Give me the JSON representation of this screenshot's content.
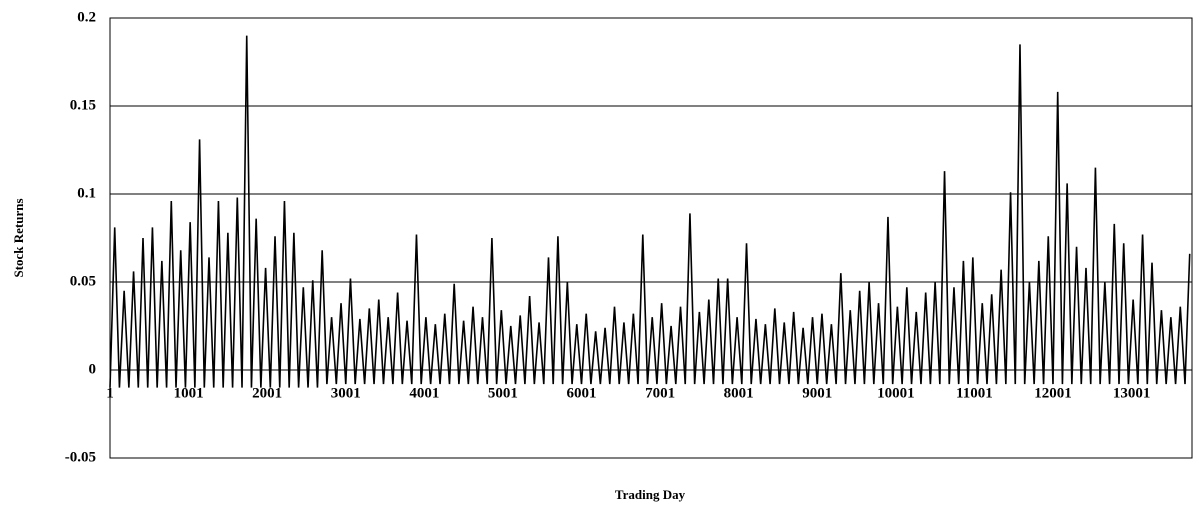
{
  "chart_data": {
    "type": "line",
    "x_label": "Trading Day",
    "y_label": "Stock Returns",
    "color": "#000000",
    "grid": true,
    "xlim": [
      1,
      13770
    ],
    "xticks": [
      1,
      1001,
      2001,
      3001,
      4001,
      5001,
      6001,
      7001,
      8001,
      9001,
      10001,
      11001,
      12001,
      13001
    ],
    "ylim": [
      -0.05,
      0.2
    ],
    "yticks": [
      -0.05,
      0,
      0.05,
      0.1,
      0.15,
      0.2
    ],
    "x": [
      1,
      61,
      121,
      181,
      241,
      301,
      361,
      421,
      481,
      541,
      601,
      661,
      721,
      781,
      841,
      901,
      961,
      1021,
      1081,
      1141,
      1201,
      1261,
      1321,
      1381,
      1441,
      1501,
      1561,
      1621,
      1681,
      1741,
      1801,
      1861,
      1921,
      1981,
      2041,
      2101,
      2161,
      2221,
      2281,
      2341,
      2401,
      2461,
      2521,
      2581,
      2641,
      2701,
      2761,
      2821,
      2881,
      2941,
      3001,
      3061,
      3121,
      3181,
      3241,
      3301,
      3361,
      3421,
      3481,
      3541,
      3601,
      3661,
      3721,
      3781,
      3841,
      3901,
      3961,
      4021,
      4081,
      4141,
      4201,
      4261,
      4321,
      4381,
      4441,
      4501,
      4561,
      4621,
      4681,
      4741,
      4801,
      4861,
      4921,
      4981,
      5041,
      5101,
      5161,
      5221,
      5281,
      5341,
      5401,
      5461,
      5521,
      5581,
      5641,
      5701,
      5761,
      5821,
      5881,
      5941,
      6001,
      6061,
      6121,
      6181,
      6241,
      6301,
      6361,
      6421,
      6481,
      6541,
      6601,
      6661,
      6721,
      6781,
      6841,
      6901,
      6961,
      7021,
      7081,
      7141,
      7201,
      7261,
      7321,
      7381,
      7441,
      7501,
      7561,
      7621,
      7681,
      7741,
      7801,
      7861,
      7921,
      7981,
      8041,
      8101,
      8161,
      8221,
      8281,
      8341,
      8401,
      8461,
      8521,
      8581,
      8641,
      8701,
      8761,
      8821,
      8881,
      8941,
      9001,
      9061,
      9121,
      9181,
      9241,
      9301,
      9361,
      9421,
      9481,
      9541,
      9601,
      9661,
      9721,
      9781,
      9841,
      9901,
      9961,
      10021,
      10081,
      10141,
      10201,
      10261,
      10321,
      10381,
      10441,
      10501,
      10561,
      10621,
      10681,
      10741,
      10801,
      10861,
      10921,
      10981,
      11041,
      11101,
      11161,
      11221,
      11281,
      11341,
      11401,
      11461,
      11521,
      11581,
      11641,
      11701,
      11761,
      11821,
      11881,
      11941,
      12001,
      12061,
      12121,
      12181,
      12241,
      12301,
      12361,
      12421,
      12481,
      12541,
      12601,
      12661,
      12721,
      12781,
      12841,
      12901,
      12961,
      13021,
      13081,
      13141,
      13201,
      13261,
      13321,
      13381,
      13441,
      13501,
      13561,
      13621,
      13681,
      13741
    ],
    "values": [
      -0.01,
      0.081,
      -0.01,
      0.045,
      -0.01,
      0.056,
      -0.01,
      0.075,
      -0.01,
      0.081,
      -0.01,
      0.062,
      -0.01,
      0.096,
      -0.01,
      0.068,
      -0.01,
      0.084,
      -0.01,
      0.131,
      -0.01,
      0.064,
      -0.01,
      0.096,
      -0.01,
      0.078,
      -0.01,
      0.098,
      -0.01,
      0.19,
      -0.01,
      0.086,
      -0.01,
      0.058,
      -0.01,
      0.076,
      -0.01,
      0.096,
      -0.01,
      0.078,
      -0.01,
      0.047,
      -0.01,
      0.051,
      -0.01,
      0.068,
      -0.008,
      0.03,
      -0.008,
      0.038,
      -0.008,
      0.052,
      -0.008,
      0.029,
      -0.008,
      0.035,
      -0.008,
      0.04,
      -0.008,
      0.03,
      -0.008,
      0.044,
      -0.008,
      0.028,
      -0.008,
      0.077,
      -0.008,
      0.03,
      -0.008,
      0.026,
      -0.008,
      0.032,
      -0.008,
      0.049,
      -0.008,
      0.028,
      -0.008,
      0.036,
      -0.008,
      0.03,
      -0.008,
      0.075,
      -0.008,
      0.034,
      -0.008,
      0.025,
      -0.008,
      0.031,
      -0.008,
      0.042,
      -0.008,
      0.027,
      -0.008,
      0.064,
      -0.008,
      0.076,
      -0.008,
      0.05,
      -0.008,
      0.026,
      -0.008,
      0.032,
      -0.008,
      0.022,
      -0.008,
      0.024,
      -0.008,
      0.036,
      -0.008,
      0.027,
      -0.008,
      0.032,
      -0.008,
      0.077,
      -0.008,
      0.03,
      -0.008,
      0.038,
      -0.008,
      0.025,
      -0.008,
      0.036,
      -0.008,
      0.089,
      -0.008,
      0.033,
      -0.008,
      0.04,
      -0.008,
      0.052,
      -0.008,
      0.052,
      -0.008,
      0.03,
      -0.008,
      0.072,
      -0.008,
      0.029,
      -0.008,
      0.026,
      -0.008,
      0.035,
      -0.008,
      0.027,
      -0.008,
      0.033,
      -0.008,
      0.024,
      -0.008,
      0.03,
      -0.008,
      0.032,
      -0.008,
      0.026,
      -0.008,
      0.055,
      -0.008,
      0.034,
      -0.008,
      0.045,
      -0.008,
      0.05,
      -0.008,
      0.038,
      -0.008,
      0.087,
      -0.008,
      0.036,
      -0.008,
      0.047,
      -0.008,
      0.033,
      -0.008,
      0.044,
      -0.008,
      0.05,
      -0.008,
      0.113,
      -0.008,
      0.047,
      -0.008,
      0.062,
      -0.008,
      0.064,
      -0.008,
      0.038,
      -0.008,
      0.043,
      -0.008,
      0.057,
      -0.008,
      0.101,
      -0.008,
      0.185,
      -0.008,
      0.05,
      -0.008,
      0.062,
      -0.008,
      0.076,
      -0.008,
      0.158,
      -0.008,
      0.106,
      -0.008,
      0.07,
      -0.008,
      0.058,
      -0.008,
      0.115,
      -0.008,
      0.05,
      -0.008,
      0.083,
      -0.008,
      0.072,
      -0.008,
      0.04,
      -0.008,
      0.077,
      -0.008,
      0.061,
      -0.008,
      0.034,
      -0.008,
      0.03,
      -0.008,
      0.036,
      -0.008,
      0.066
    ]
  }
}
